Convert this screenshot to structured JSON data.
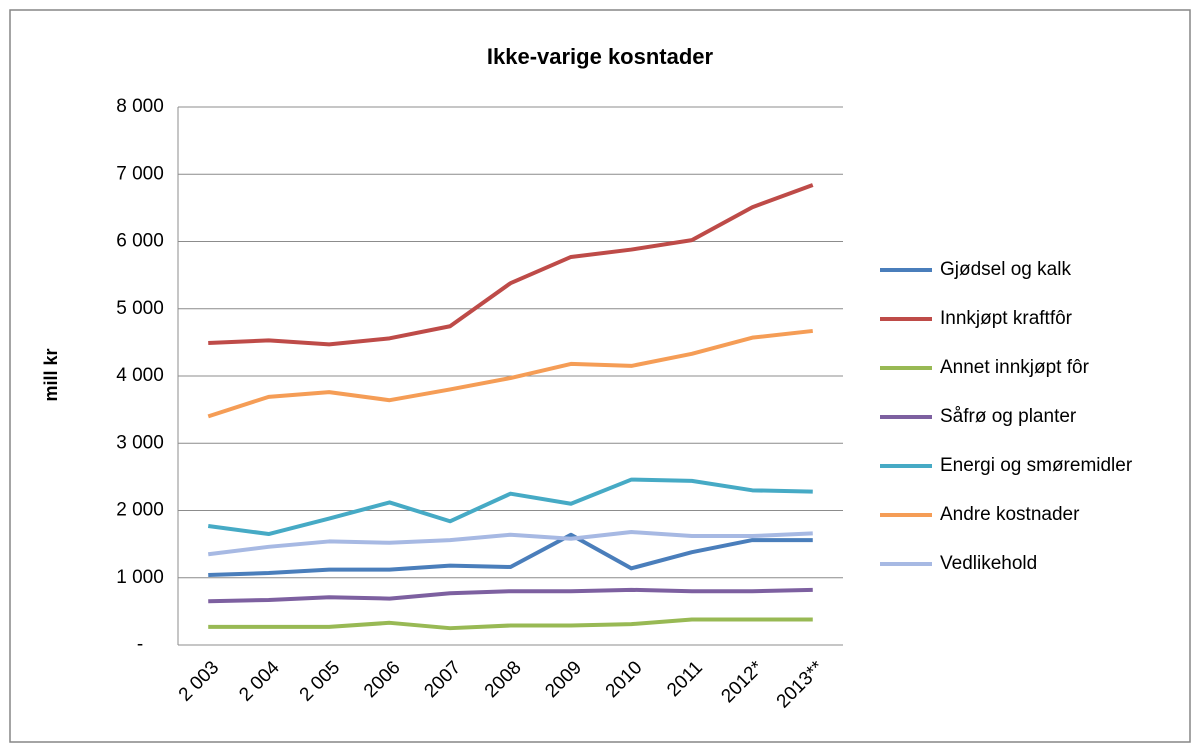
{
  "chart_data": {
    "type": "line",
    "title": "Ikke-varige kosntader",
    "y_label": "mill kr",
    "categories": [
      "2 003",
      "2 004",
      "2 005",
      "2006",
      "2007",
      "2008",
      "2009",
      "2010",
      "2011",
      "2012*",
      "2013**"
    ],
    "series": [
      {
        "name": "Gjødsel og kalk",
        "color": "#4a7ebb",
        "values": [
          1040,
          1070,
          1120,
          1120,
          1180,
          1160,
          1640,
          1140,
          1380,
          1560,
          1560
        ]
      },
      {
        "name": "Innkjøpt kraftfôr",
        "color": "#be4b48",
        "values": [
          4490,
          4530,
          4470,
          4560,
          4740,
          5380,
          5770,
          5880,
          6020,
          6510,
          6840
        ]
      },
      {
        "name": "Annet innkjøpt fôr",
        "color": "#98b954",
        "values": [
          270,
          270,
          270,
          330,
          250,
          290,
          290,
          310,
          380,
          380,
          380
        ]
      },
      {
        "name": "Såfrø og planter",
        "color": "#7d60a0",
        "values": [
          650,
          670,
          710,
          690,
          770,
          800,
          800,
          820,
          800,
          800,
          820
        ]
      },
      {
        "name": "Energi og smøremidler",
        "color": "#46aac5",
        "values": [
          1770,
          1650,
          1880,
          2120,
          1840,
          2250,
          2100,
          2460,
          2440,
          2300,
          2280
        ]
      },
      {
        "name": "Andre kostnader",
        "color": "#f59d56",
        "values": [
          3400,
          3690,
          3760,
          3640,
          3800,
          3970,
          4180,
          4150,
          4330,
          4570,
          4670
        ]
      },
      {
        "name": "Vedlikehold",
        "color": "#a7b9e3",
        "values": [
          1350,
          1460,
          1540,
          1520,
          1560,
          1640,
          1580,
          1680,
          1620,
          1620,
          1660
        ]
      }
    ],
    "ylim": [
      0,
      8000
    ],
    "yticks": [
      {
        "value": 0,
        "label": "-"
      },
      {
        "value": 1000,
        "label": "1 000"
      },
      {
        "value": 2000,
        "label": "2 000"
      },
      {
        "value": 3000,
        "label": "3 000"
      },
      {
        "value": 4000,
        "label": "4 000"
      },
      {
        "value": 5000,
        "label": "5 000"
      },
      {
        "value": 6000,
        "label": "6 000"
      },
      {
        "value": 7000,
        "label": "7 000"
      },
      {
        "value": 8000,
        "label": "8 000"
      }
    ],
    "grid": true
  }
}
